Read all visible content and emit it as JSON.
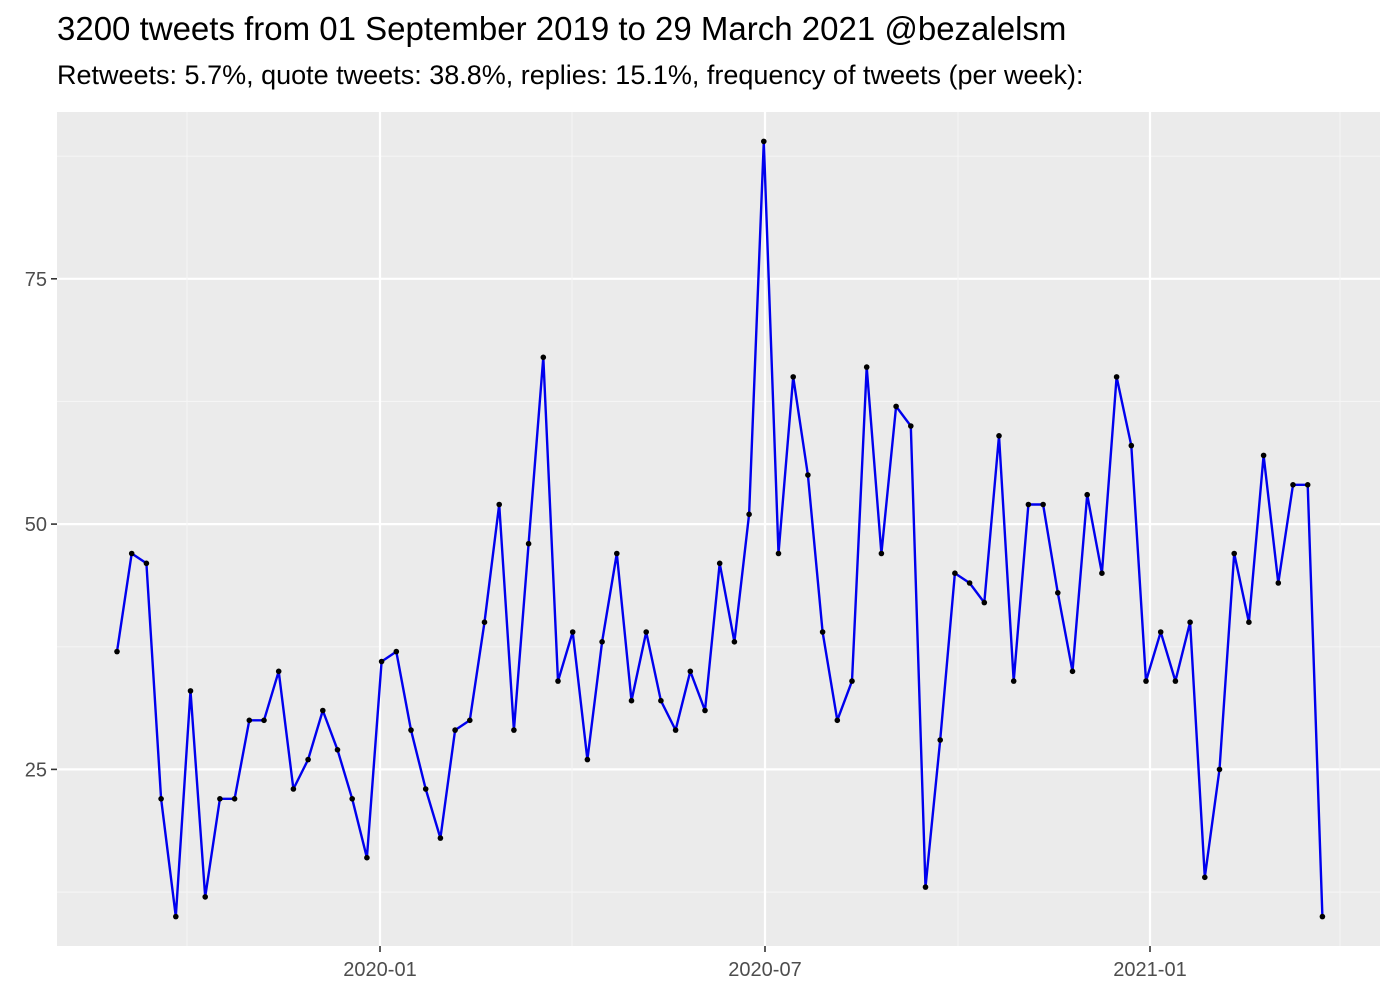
{
  "chart_data": {
    "type": "line",
    "title": "3200 tweets from 01 September 2019 to 29 March 2021 @bezalelsm",
    "subtitle": "Retweets: 5.7%, quote tweets: 38.8%, replies: 15.1%, frequency of tweets (per week):",
    "xlabel": "",
    "ylabel": "",
    "x_tick_labels": [
      "2020-01",
      "2020-07",
      "2021-01"
    ],
    "y_tick_labels": [
      "25",
      "50",
      "75"
    ],
    "ylim": [
      7,
      92
    ],
    "grid": true,
    "legend": "none",
    "colors": {
      "line": "#0000EE",
      "points": "#000000",
      "panel": "#EBEBEB",
      "grid_major": "#FFFFFF",
      "grid_minor": "#F5F5F5"
    },
    "series": [
      {
        "values": [
          37,
          47,
          46,
          22,
          10,
          33,
          12,
          22,
          22,
          30,
          30,
          35,
          23,
          26,
          31,
          27,
          22,
          16,
          36,
          37,
          29,
          23,
          18,
          29,
          30,
          40,
          52,
          29,
          48,
          67,
          34,
          39,
          26,
          38,
          47,
          32,
          39,
          32,
          29,
          35,
          31,
          46,
          38,
          51,
          89,
          47,
          65,
          55,
          39,
          30,
          34,
          66,
          47,
          62,
          60,
          13,
          28,
          45,
          44,
          42,
          59,
          34,
          52,
          52,
          43,
          35,
          53,
          45,
          65,
          58,
          34,
          39,
          34,
          40,
          14,
          25,
          47,
          40,
          57,
          44,
          54,
          54,
          10
        ]
      }
    ]
  }
}
